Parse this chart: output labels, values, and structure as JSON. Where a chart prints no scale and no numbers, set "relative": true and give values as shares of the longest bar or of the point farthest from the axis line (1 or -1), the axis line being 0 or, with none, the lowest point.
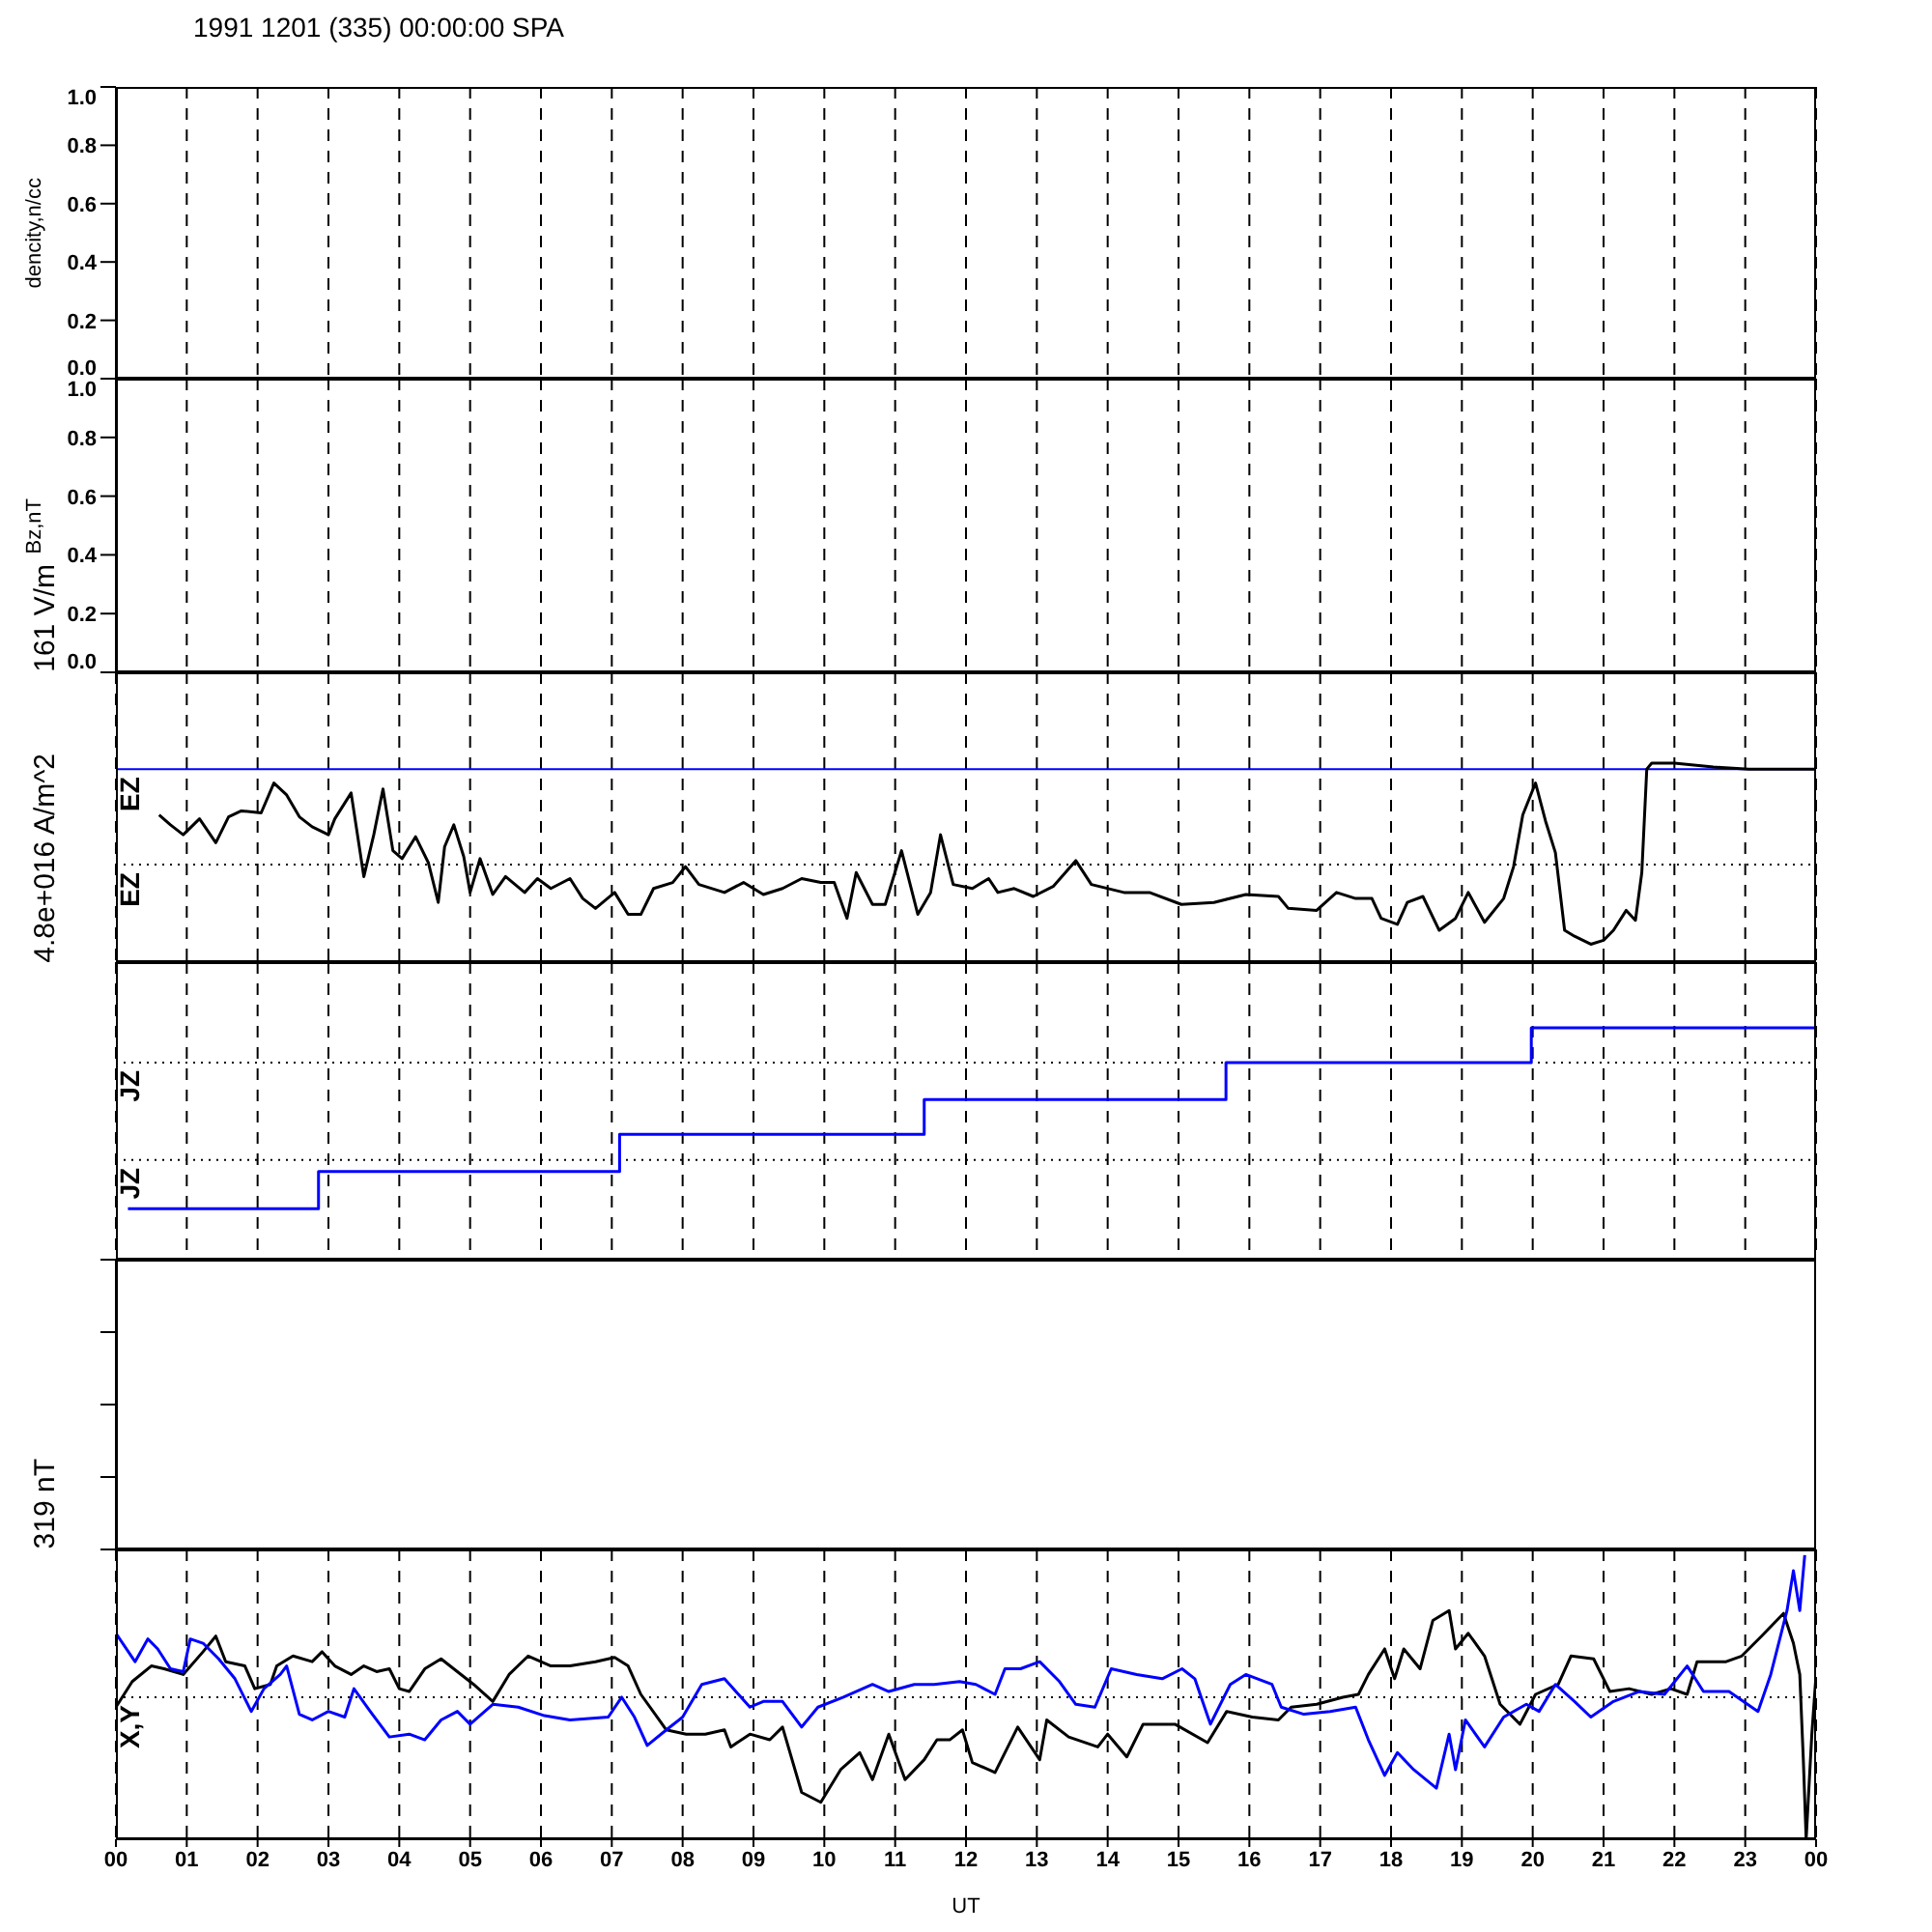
{
  "chart_data": [
    {
      "type": "line",
      "title": "1991 1201 (335) 00:00:00 SPA",
      "ylabel": "dencity,n/cc",
      "xlim": [
        0,
        24
      ],
      "xticks": [
        0,
        1,
        2,
        3,
        4,
        5,
        6,
        7,
        8,
        9,
        10,
        11,
        12,
        13,
        14,
        15,
        16,
        17,
        18,
        19,
        20,
        21,
        22,
        23,
        24
      ],
      "ylim": [
        0,
        1
      ],
      "yticks": [
        {
          "value": 0,
          "label": "0.0"
        },
        {
          "value": 0.2,
          "label": "0.2"
        },
        {
          "value": 0.4,
          "label": "0.4"
        },
        {
          "value": 0.6,
          "label": "0.6"
        },
        {
          "value": 0.8,
          "label": "0.8"
        },
        {
          "value": 1,
          "label": "1.0"
        }
      ],
      "grid": "x",
      "tick_labels": "y"
    },
    {
      "type": "line",
      "ylabel": "Bz,nT",
      "xlim": [
        0,
        24
      ],
      "xticks": [
        0,
        1,
        2,
        3,
        4,
        5,
        6,
        7,
        8,
        9,
        10,
        11,
        12,
        13,
        14,
        15,
        16,
        17,
        18,
        19,
        20,
        21,
        22,
        23,
        24
      ],
      "ylim": [
        0,
        1
      ],
      "yticks": [
        {
          "value": 0,
          "label": "0.0"
        },
        {
          "value": 0.2,
          "label": "0.2"
        },
        {
          "value": 0.4,
          "label": "0.4"
        },
        {
          "value": 0.6,
          "label": "0.6"
        },
        {
          "value": 0.8,
          "label": "0.8"
        },
        {
          "value": 1,
          "label": "1.0"
        }
      ],
      "grid": "x",
      "tick_labels": "y"
    },
    {
      "type": "line",
      "ylabel": "161 V/m",
      "relative": true,
      "xlim": [
        0,
        24
      ],
      "xticks": [
        0,
        1,
        2,
        3,
        4,
        5,
        6,
        7,
        8,
        9,
        10,
        11,
        12,
        13,
        14,
        15,
        16,
        17,
        18,
        19,
        20,
        21,
        22,
        23,
        24
      ],
      "grid": "x",
      "tick_labels": false,
      "ref_lines": [
        {
          "axis": "y",
          "value": 0.97,
          "label": "EZ",
          "color": "#0000ff",
          "line_style": "solid"
        },
        {
          "axis": "y",
          "value": 0.49,
          "label": "EZ",
          "color": "#000000",
          "line_style": "dotted"
        }
      ],
      "series": [
        {
          "color": "#000000",
          "x": [
            0.61,
            0.77,
            0.95,
            1.18,
            1.41,
            1.59,
            1.77,
            2.05,
            2.23,
            2.41,
            2.59,
            2.77,
            3.0,
            3.09,
            3.32,
            3.5,
            3.64,
            3.77,
            3.91,
            4.04,
            4.23,
            4.41,
            4.55,
            4.64,
            4.77,
            4.91,
            5.0,
            5.14,
            5.32,
            5.5,
            5.77,
            5.95,
            6.14,
            6.41,
            6.59,
            6.77,
            7.04,
            7.23,
            7.41,
            7.59,
            7.86,
            8.04,
            8.23,
            8.59,
            8.86,
            9.14,
            9.41,
            9.68,
            9.95,
            10.14,
            10.32,
            10.45,
            10.68,
            10.86,
            11.09,
            11.32,
            11.5,
            11.64,
            11.82,
            12.09,
            12.32,
            12.45,
            12.68,
            12.95,
            13.23,
            13.55,
            13.77,
            14.23,
            14.59,
            15.04,
            15.5,
            15.95,
            16.41,
            16.55,
            16.95,
            17.23,
            17.5,
            17.73,
            17.86,
            18.09,
            18.23,
            18.45,
            18.68,
            18.91,
            19.09,
            19.32,
            19.59,
            19.73,
            19.86,
            20.04,
            20.18,
            20.32,
            20.45,
            20.59,
            20.82,
            21.0,
            21.14,
            21.32,
            21.45,
            21.54,
            21.61,
            21.68,
            22.0,
            22.55,
            23.05,
            23.59,
            24.0
          ],
          "values": [
            0.74,
            0.69,
            0.64,
            0.72,
            0.6,
            0.73,
            0.76,
            0.75,
            0.9,
            0.84,
            0.73,
            0.68,
            0.64,
            0.72,
            0.85,
            0.43,
            0.64,
            0.87,
            0.56,
            0.52,
            0.63,
            0.5,
            0.3,
            0.58,
            0.69,
            0.53,
            0.35,
            0.52,
            0.34,
            0.43,
            0.35,
            0.42,
            0.37,
            0.42,
            0.32,
            0.27,
            0.35,
            0.24,
            0.24,
            0.37,
            0.4,
            0.48,
            0.39,
            0.35,
            0.4,
            0.34,
            0.37,
            0.42,
            0.4,
            0.4,
            0.22,
            0.45,
            0.29,
            0.29,
            0.56,
            0.24,
            0.35,
            0.64,
            0.39,
            0.37,
            0.42,
            0.35,
            0.37,
            0.33,
            0.38,
            0.51,
            0.39,
            0.35,
            0.35,
            0.29,
            0.3,
            0.34,
            0.33,
            0.27,
            0.26,
            0.35,
            0.32,
            0.32,
            0.22,
            0.19,
            0.3,
            0.33,
            0.16,
            0.22,
            0.35,
            0.2,
            0.32,
            0.48,
            0.74,
            0.9,
            0.71,
            0.55,
            0.16,
            0.13,
            0.09,
            0.11,
            0.16,
            0.26,
            0.21,
            0.45,
            0.97,
            1.0,
            1.0,
            0.98,
            0.97,
            0.97,
            0.97
          ]
        }
      ]
    },
    {
      "type": "step",
      "ylabel": "4.8e+016 A/m^2",
      "relative": true,
      "xlim": [
        0,
        24
      ],
      "xticks": [
        0,
        1,
        2,
        3,
        4,
        5,
        6,
        7,
        8,
        9,
        10,
        11,
        12,
        13,
        14,
        15,
        16,
        17,
        18,
        19,
        20,
        21,
        22,
        23,
        24
      ],
      "grid": "x",
      "tick_labels": false,
      "ref_lines": [
        {
          "axis": "y",
          "value": 0.85,
          "label": "JZ",
          "color": "#000000",
          "line_style": "dotted"
        },
        {
          "axis": "y",
          "value": 0.43,
          "label": "JZ",
          "color": "#000000",
          "line_style": "dotted"
        }
      ],
      "series": [
        {
          "color": "#0000ff",
          "x": [
            0.17,
            2.86,
            7.11,
            11.41,
            15.67,
            19.98,
            24.0
          ],
          "values": [
            0.22,
            0.38,
            0.54,
            0.69,
            0.85,
            1.0,
            1.0
          ]
        }
      ]
    },
    {
      "type": "other"
    },
    {
      "type": "line",
      "ylabel": "319 nT",
      "xlabel": "UT",
      "relative": true,
      "xlim": [
        0,
        24
      ],
      "xticks": [
        {
          "value": 0,
          "label": "00"
        },
        {
          "value": 1,
          "label": "01"
        },
        {
          "value": 2,
          "label": "02"
        },
        {
          "value": 3,
          "label": "03"
        },
        {
          "value": 4,
          "label": "04"
        },
        {
          "value": 5,
          "label": "05"
        },
        {
          "value": 6,
          "label": "06"
        },
        {
          "value": 7,
          "label": "07"
        },
        {
          "value": 8,
          "label": "08"
        },
        {
          "value": 9,
          "label": "09"
        },
        {
          "value": 10,
          "label": "10"
        },
        {
          "value": 11,
          "label": "11"
        },
        {
          "value": 12,
          "label": "12"
        },
        {
          "value": 13,
          "label": "13"
        },
        {
          "value": 14,
          "label": "14"
        },
        {
          "value": 15,
          "label": "15"
        },
        {
          "value": 16,
          "label": "16"
        },
        {
          "value": 17,
          "label": "17"
        },
        {
          "value": 18,
          "label": "18"
        },
        {
          "value": 19,
          "label": "19"
        },
        {
          "value": 20,
          "label": "20"
        },
        {
          "value": 21,
          "label": "21"
        },
        {
          "value": 22,
          "label": "22"
        },
        {
          "value": 23,
          "label": "23"
        },
        {
          "value": 24,
          "label": "00"
        }
      ],
      "grid": "x",
      "tick_labels": "x",
      "ref_lines": [
        {
          "axis": "y",
          "value": 0,
          "label": "X,Y",
          "color": "#000000",
          "line_style": "dotted"
        }
      ],
      "series": [
        {
          "color": "#000000",
          "x": [
            0.0,
            0.23,
            0.5,
            0.68,
            0.95,
            1.23,
            1.41,
            1.55,
            1.82,
            1.96,
            2.18,
            2.27,
            2.5,
            2.77,
            2.91,
            3.09,
            3.32,
            3.5,
            3.68,
            3.86,
            4.0,
            4.14,
            4.36,
            4.59,
            4.82,
            5.05,
            5.32,
            5.55,
            5.82,
            6.14,
            6.41,
            6.77,
            7.04,
            7.23,
            7.41,
            7.77,
            8.05,
            8.32,
            8.59,
            8.68,
            8.95,
            9.23,
            9.41,
            9.68,
            9.95,
            10.23,
            10.5,
            10.68,
            10.91,
            11.14,
            11.41,
            11.59,
            11.77,
            11.95,
            12.09,
            12.41,
            12.73,
            13.04,
            13.14,
            13.45,
            13.86,
            14.0,
            14.27,
            14.5,
            14.95,
            15.41,
            15.68,
            16.04,
            16.41,
            16.59,
            16.95,
            17.32,
            17.54,
            17.68,
            17.91,
            18.05,
            18.18,
            18.41,
            18.59,
            18.82,
            18.91,
            19.09,
            19.32,
            19.54,
            19.82,
            20.04,
            20.36,
            20.54,
            20.86,
            21.09,
            21.36,
            21.68,
            21.95,
            22.18,
            22.32,
            22.73,
            22.95,
            23.23,
            23.54,
            23.68,
            23.77,
            23.82,
            23.86,
            23.94,
            24.0
          ],
          "values": [
            -0.07,
            0.11,
            0.22,
            0.2,
            0.16,
            0.32,
            0.43,
            0.25,
            0.22,
            0.06,
            0.09,
            0.22,
            0.29,
            0.25,
            0.32,
            0.22,
            0.16,
            0.22,
            0.18,
            0.2,
            0.06,
            0.04,
            0.2,
            0.27,
            0.18,
            0.09,
            -0.03,
            0.16,
            0.29,
            0.22,
            0.22,
            0.25,
            0.28,
            0.22,
            0.02,
            -0.23,
            -0.26,
            -0.26,
            -0.23,
            -0.35,
            -0.26,
            -0.3,
            -0.21,
            -0.67,
            -0.74,
            -0.51,
            -0.39,
            -0.58,
            -0.26,
            -0.58,
            -0.44,
            -0.3,
            -0.3,
            -0.23,
            -0.46,
            -0.53,
            -0.21,
            -0.44,
            -0.16,
            -0.28,
            -0.35,
            -0.26,
            -0.42,
            -0.19,
            -0.19,
            -0.32,
            -0.1,
            -0.14,
            -0.16,
            -0.07,
            -0.05,
            0.0,
            0.02,
            0.16,
            0.34,
            0.13,
            0.34,
            0.2,
            0.54,
            0.61,
            0.34,
            0.45,
            0.29,
            -0.05,
            -0.19,
            0.02,
            0.09,
            0.29,
            0.27,
            0.04,
            0.06,
            0.02,
            0.06,
            0.02,
            0.25,
            0.25,
            0.29,
            0.43,
            0.59,
            0.38,
            0.16,
            -0.44,
            -1.0,
            -0.26,
            0.16
          ]
        },
        {
          "color": "#0000ff",
          "x": [
            0.0,
            0.27,
            0.45,
            0.59,
            0.77,
            0.95,
            1.05,
            1.23,
            1.45,
            1.68,
            1.91,
            2.09,
            2.32,
            2.41,
            2.59,
            2.77,
            3.0,
            3.23,
            3.36,
            3.59,
            3.86,
            4.14,
            4.36,
            4.59,
            4.82,
            5.0,
            5.32,
            5.68,
            6.05,
            6.41,
            6.95,
            7.14,
            7.32,
            7.5,
            7.77,
            8.0,
            8.27,
            8.59,
            8.95,
            9.14,
            9.41,
            9.68,
            9.91,
            10.27,
            10.68,
            10.91,
            11.27,
            11.55,
            11.91,
            12.14,
            12.41,
            12.55,
            12.77,
            13.04,
            13.32,
            13.55,
            13.82,
            14.05,
            14.41,
            14.77,
            15.05,
            15.23,
            15.45,
            15.73,
            15.95,
            16.32,
            16.45,
            16.77,
            17.14,
            17.5,
            17.68,
            17.91,
            18.09,
            18.32,
            18.64,
            18.82,
            18.91,
            19.05,
            19.32,
            19.59,
            19.91,
            20.09,
            20.32,
            20.59,
            20.82,
            21.14,
            21.5,
            21.86,
            22.18,
            22.41,
            22.77,
            23.18,
            23.36,
            23.59,
            23.68,
            23.77,
            23.84
          ],
          "values": [
            0.45,
            0.25,
            0.41,
            0.34,
            0.2,
            0.18,
            0.41,
            0.38,
            0.27,
            0.13,
            -0.1,
            0.06,
            0.16,
            0.22,
            -0.12,
            -0.16,
            -0.1,
            -0.14,
            0.06,
            -0.1,
            -0.28,
            -0.26,
            -0.3,
            -0.16,
            -0.1,
            -0.19,
            -0.05,
            -0.07,
            -0.13,
            -0.16,
            -0.14,
            0.0,
            -0.14,
            -0.34,
            -0.23,
            -0.14,
            0.09,
            0.13,
            -0.07,
            -0.03,
            -0.03,
            -0.21,
            -0.07,
            0.0,
            0.09,
            0.04,
            0.09,
            0.09,
            0.11,
            0.09,
            0.02,
            0.2,
            0.2,
            0.25,
            0.11,
            -0.05,
            -0.07,
            0.2,
            0.16,
            0.13,
            0.2,
            0.13,
            -0.19,
            0.09,
            0.16,
            0.09,
            -0.07,
            -0.12,
            -0.1,
            -0.07,
            -0.3,
            -0.55,
            -0.39,
            -0.51,
            -0.64,
            -0.26,
            -0.51,
            -0.16,
            -0.35,
            -0.14,
            -0.05,
            -0.1,
            0.09,
            -0.03,
            -0.14,
            -0.03,
            0.04,
            0.02,
            0.22,
            0.04,
            0.04,
            -0.1,
            0.16,
            0.61,
            0.89,
            0.61,
            1.0
          ]
        }
      ]
    }
  ]
}
